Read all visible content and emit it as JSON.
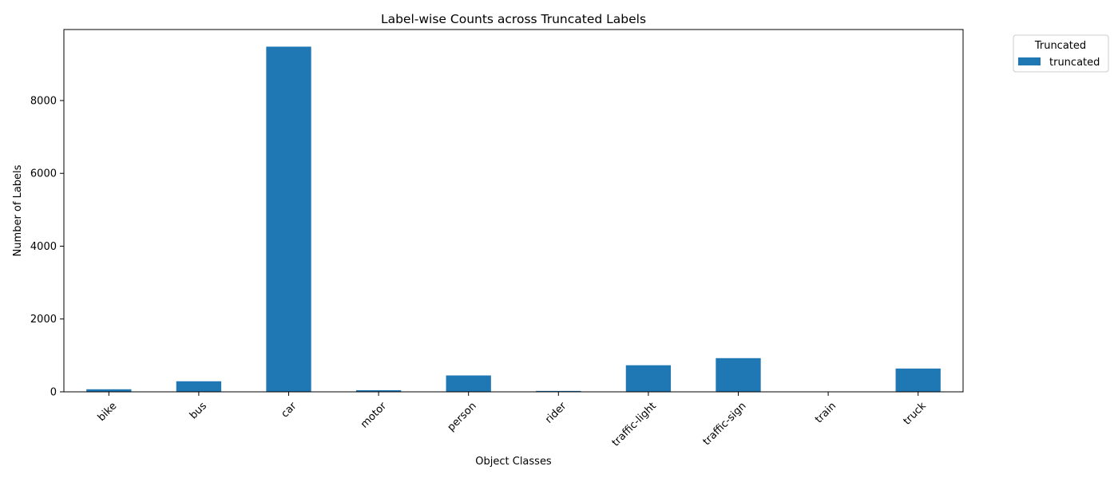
{
  "chart_data": {
    "type": "bar",
    "title": "Label-wise Counts across Truncated Labels",
    "xlabel": "Object Classes",
    "ylabel": "Number of Labels",
    "categories": [
      "bike",
      "bus",
      "car",
      "motor",
      "person",
      "rider",
      "traffic-light",
      "traffic-sign",
      "train",
      "truck"
    ],
    "series": [
      {
        "name": "truncated",
        "color": "#1f77b4",
        "values": [
          70,
          290,
          9480,
          45,
          450,
          25,
          730,
          925,
          5,
          640
        ]
      }
    ],
    "ylim": [
      0,
      9950
    ],
    "yticks": [
      0,
      2000,
      4000,
      6000,
      8000
    ],
    "ytick_labels": [
      "0",
      "2000",
      "4000",
      "6000",
      "8000"
    ],
    "grid": false,
    "legend": {
      "title": "Truncated",
      "placement": "outside-top-right"
    }
  }
}
